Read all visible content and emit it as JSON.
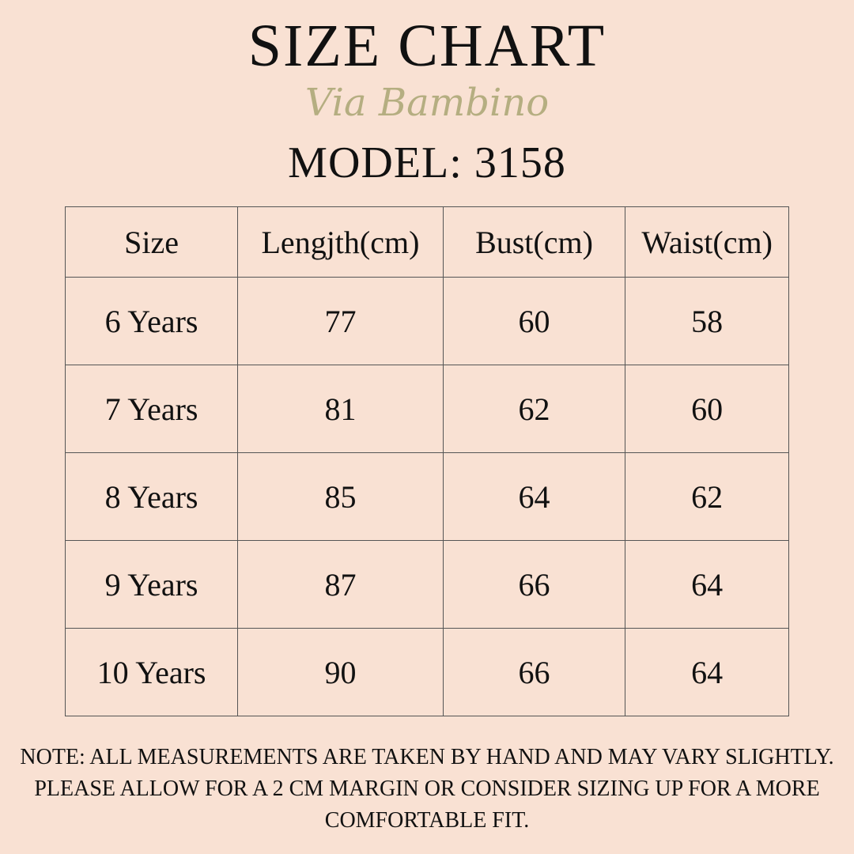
{
  "title": "SIZE CHART",
  "logo_text": "Via Bambino",
  "model": "MODEL: 3158",
  "table": {
    "headers": [
      "Size",
      "Lengjth(cm)",
      "Bust(cm)",
      "Waist(cm)"
    ],
    "rows": [
      [
        "6 Years",
        "77",
        "60",
        "58"
      ],
      [
        "7 Years",
        "81",
        "62",
        "60"
      ],
      [
        "8 Years",
        "85",
        "64",
        "62"
      ],
      [
        "9 Years",
        "87",
        "66",
        "64"
      ],
      [
        "10 Years",
        "90",
        "66",
        "64"
      ]
    ]
  },
  "note": "NOTE: ALL MEASUREMENTS ARE TAKEN BY HAND AND MAY VARY SLIGHTLY. PLEASE ALLOW FOR A 2 CM MARGIN OR CONSIDER SIZING UP FOR A MORE COMFORTABLE FIT.",
  "colors": {
    "background": "#f9e1d3",
    "logo": "#aaa673",
    "text": "#111111",
    "border": "#555555"
  }
}
